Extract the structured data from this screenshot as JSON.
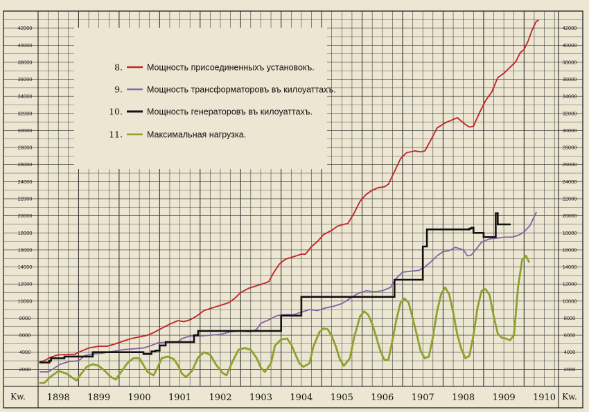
{
  "chart_data": {
    "type": "line",
    "ylim": [
      0,
      44000
    ],
    "y_ticks": [
      2000,
      4000,
      6000,
      8000,
      10000,
      12000,
      14000,
      16000,
      18000,
      20000,
      22000,
      24000,
      26000,
      28000,
      30000,
      32000,
      34000,
      36000,
      38000,
      40000,
      42000
    ],
    "y_unit_left": "Kw.",
    "y_unit_right": "Kw.",
    "x_years": [
      "1898",
      "1899",
      "1900",
      "1901",
      "1902",
      "1903",
      "1904",
      "1905",
      "1906",
      "1907",
      "1908",
      "1909",
      "1910"
    ],
    "xlim": [
      1898,
      1910.85
    ],
    "grid": true,
    "legend_placement": "top-left",
    "series": [
      {
        "id": "s8",
        "num": "8.",
        "name": "Мощность присоединенныхъ установокъ.",
        "color": "#c0282a",
        "step": false,
        "points": [
          [
            1898.05,
            2900
          ],
          [
            1898.15,
            3000
          ],
          [
            1898.3,
            3400
          ],
          [
            1898.5,
            3700
          ],
          [
            1898.75,
            3750
          ],
          [
            1898.9,
            3750
          ],
          [
            1899.05,
            4100
          ],
          [
            1899.25,
            4500
          ],
          [
            1899.5,
            4700
          ],
          [
            1899.7,
            4700
          ],
          [
            1899.85,
            4900
          ],
          [
            1900.1,
            5300
          ],
          [
            1900.3,
            5600
          ],
          [
            1900.5,
            5800
          ],
          [
            1900.7,
            6000
          ],
          [
            1900.85,
            6300
          ],
          [
            1901.05,
            6800
          ],
          [
            1901.25,
            7300
          ],
          [
            1901.45,
            7700
          ],
          [
            1901.6,
            7600
          ],
          [
            1901.75,
            7800
          ],
          [
            1901.9,
            8200
          ],
          [
            1902.1,
            8900
          ],
          [
            1902.3,
            9200
          ],
          [
            1902.5,
            9500
          ],
          [
            1902.7,
            9800
          ],
          [
            1902.85,
            10300
          ],
          [
            1903.0,
            11000
          ],
          [
            1903.2,
            11500
          ],
          [
            1903.4,
            11800
          ],
          [
            1903.6,
            12100
          ],
          [
            1903.7,
            12300
          ],
          [
            1903.8,
            13200
          ],
          [
            1903.95,
            14300
          ],
          [
            1904.1,
            14900
          ],
          [
            1904.3,
            15200
          ],
          [
            1904.5,
            15500
          ],
          [
            1904.6,
            15500
          ],
          [
            1904.75,
            16400
          ],
          [
            1904.9,
            17000
          ],
          [
            1905.05,
            17800
          ],
          [
            1905.25,
            18300
          ],
          [
            1905.4,
            18800
          ],
          [
            1905.55,
            19000
          ],
          [
            1905.65,
            19100
          ],
          [
            1905.8,
            20300
          ],
          [
            1905.95,
            21700
          ],
          [
            1906.1,
            22500
          ],
          [
            1906.25,
            23000
          ],
          [
            1906.4,
            23300
          ],
          [
            1906.55,
            23400
          ],
          [
            1906.65,
            23700
          ],
          [
            1906.8,
            25200
          ],
          [
            1906.95,
            26700
          ],
          [
            1907.1,
            27400
          ],
          [
            1907.3,
            27600
          ],
          [
            1907.45,
            27500
          ],
          [
            1907.55,
            27600
          ],
          [
            1907.7,
            28900
          ],
          [
            1907.85,
            30300
          ],
          [
            1908.05,
            30900
          ],
          [
            1908.2,
            31200
          ],
          [
            1908.35,
            31500
          ],
          [
            1908.45,
            31100
          ],
          [
            1908.55,
            30700
          ],
          [
            1908.65,
            30400
          ],
          [
            1908.75,
            30500
          ],
          [
            1908.9,
            32100
          ],
          [
            1909.05,
            33500
          ],
          [
            1909.2,
            34500
          ],
          [
            1909.35,
            36200
          ],
          [
            1909.5,
            36700
          ],
          [
            1909.65,
            37400
          ],
          [
            1909.8,
            38100
          ],
          [
            1909.9,
            39100
          ],
          [
            1910.0,
            39500
          ],
          [
            1910.1,
            40500
          ],
          [
            1910.2,
            41800
          ],
          [
            1910.3,
            42800
          ],
          [
            1910.35,
            42900
          ]
        ]
      },
      {
        "id": "s9",
        "num": "9.",
        "name": "Мощность трансформаторовъ въ килоуаттахъ.",
        "color": "#8466a8",
        "step": false,
        "points": [
          [
            1898.05,
            1700
          ],
          [
            1898.25,
            1700
          ],
          [
            1898.35,
            2000
          ],
          [
            1898.55,
            2600
          ],
          [
            1898.75,
            2900
          ],
          [
            1899.0,
            3000
          ],
          [
            1899.15,
            3600
          ],
          [
            1899.35,
            3800
          ],
          [
            1899.6,
            3900
          ],
          [
            1899.85,
            4100
          ],
          [
            1900.1,
            4300
          ],
          [
            1900.35,
            4400
          ],
          [
            1900.6,
            4500
          ],
          [
            1900.8,
            4800
          ],
          [
            1900.95,
            5100
          ],
          [
            1901.2,
            5200
          ],
          [
            1901.45,
            5200
          ],
          [
            1901.55,
            5600
          ],
          [
            1901.75,
            5900
          ],
          [
            1902.0,
            5900
          ],
          [
            1902.25,
            6000
          ],
          [
            1902.5,
            6100
          ],
          [
            1902.75,
            6400
          ],
          [
            1903.0,
            6500
          ],
          [
            1903.25,
            6400
          ],
          [
            1903.4,
            6700
          ],
          [
            1903.5,
            7400
          ],
          [
            1903.7,
            7800
          ],
          [
            1903.9,
            8300
          ],
          [
            1904.1,
            8400
          ],
          [
            1904.3,
            8400
          ],
          [
            1904.5,
            8700
          ],
          [
            1904.7,
            9000
          ],
          [
            1904.9,
            8900
          ],
          [
            1905.1,
            9200
          ],
          [
            1905.3,
            9400
          ],
          [
            1905.5,
            9700
          ],
          [
            1905.7,
            10300
          ],
          [
            1905.9,
            10900
          ],
          [
            1906.1,
            11200
          ],
          [
            1906.3,
            11100
          ],
          [
            1906.5,
            11200
          ],
          [
            1906.7,
            11600
          ],
          [
            1906.85,
            12700
          ],
          [
            1907.0,
            13400
          ],
          [
            1907.2,
            13500
          ],
          [
            1907.4,
            13600
          ],
          [
            1907.55,
            14000
          ],
          [
            1907.7,
            14600
          ],
          [
            1907.85,
            15300
          ],
          [
            1908.0,
            15800
          ],
          [
            1908.15,
            15900
          ],
          [
            1908.3,
            16300
          ],
          [
            1908.5,
            16000
          ],
          [
            1908.6,
            15300
          ],
          [
            1908.7,
            15400
          ],
          [
            1908.8,
            16000
          ],
          [
            1908.95,
            16900
          ],
          [
            1909.15,
            17300
          ],
          [
            1909.35,
            17400
          ],
          [
            1909.55,
            17500
          ],
          [
            1909.7,
            17500
          ],
          [
            1909.85,
            17700
          ],
          [
            1910.0,
            18100
          ],
          [
            1910.15,
            18900
          ],
          [
            1910.3,
            20400
          ]
        ]
      },
      {
        "id": "s10",
        "num": "10.",
        "name": "Мощность генераторовъ въ килоуаттахъ.",
        "color": "#111111",
        "step": true,
        "points": [
          [
            1898.05,
            2800
          ],
          [
            1898.28,
            3000
          ],
          [
            1898.32,
            3300
          ],
          [
            1898.65,
            3500
          ],
          [
            1899.3,
            3500
          ],
          [
            1899.35,
            4000
          ],
          [
            1900.6,
            3800
          ],
          [
            1900.8,
            4100
          ],
          [
            1900.9,
            4200
          ],
          [
            1901.0,
            4800
          ],
          [
            1901.15,
            5200
          ],
          [
            1901.55,
            5200
          ],
          [
            1901.85,
            6000
          ],
          [
            1901.95,
            6500
          ],
          [
            1902.8,
            6500
          ],
          [
            1903.4,
            6500
          ],
          [
            1903.85,
            6500
          ],
          [
            1904.0,
            8300
          ],
          [
            1904.45,
            8300
          ],
          [
            1904.5,
            10500
          ],
          [
            1905.55,
            10500
          ],
          [
            1906.0,
            10500
          ],
          [
            1906.45,
            10500
          ],
          [
            1906.8,
            12500
          ],
          [
            1907.2,
            12500
          ],
          [
            1907.4,
            12500
          ],
          [
            1907.5,
            16400
          ],
          [
            1907.6,
            18400
          ],
          [
            1908.55,
            18400
          ],
          [
            1908.65,
            18500
          ],
          [
            1908.7,
            18600
          ],
          [
            1908.75,
            18000
          ],
          [
            1909.0,
            17500
          ],
          [
            1909.25,
            17500
          ],
          [
            1909.3,
            20300
          ],
          [
            1909.35,
            19000
          ],
          [
            1909.65,
            19000
          ]
        ]
      },
      {
        "id": "s11",
        "num": "11.",
        "name": "Максимальная нагрузка.",
        "color": "#8ea12c",
        "step": false,
        "points": [
          [
            1898.05,
            400
          ],
          [
            1898.15,
            400
          ],
          [
            1898.3,
            1100
          ],
          [
            1898.5,
            1800
          ],
          [
            1898.7,
            1500
          ],
          [
            1898.85,
            1000
          ],
          [
            1898.95,
            700
          ],
          [
            1899.05,
            1400
          ],
          [
            1899.2,
            2300
          ],
          [
            1899.35,
            2600
          ],
          [
            1899.5,
            2400
          ],
          [
            1899.65,
            1800
          ],
          [
            1899.8,
            1100
          ],
          [
            1899.92,
            800
          ],
          [
            1900.05,
            1700
          ],
          [
            1900.2,
            2700
          ],
          [
            1900.35,
            3300
          ],
          [
            1900.5,
            3300
          ],
          [
            1900.6,
            2500
          ],
          [
            1900.7,
            1700
          ],
          [
            1900.85,
            1300
          ],
          [
            1900.95,
            2200
          ],
          [
            1901.05,
            3300
          ],
          [
            1901.2,
            3500
          ],
          [
            1901.35,
            3200
          ],
          [
            1901.45,
            2500
          ],
          [
            1901.55,
            1500
          ],
          [
            1901.65,
            1100
          ],
          [
            1901.8,
            1800
          ],
          [
            1901.95,
            3400
          ],
          [
            1902.1,
            4000
          ],
          [
            1902.25,
            3700
          ],
          [
            1902.4,
            2500
          ],
          [
            1902.55,
            1600
          ],
          [
            1902.65,
            1300
          ],
          [
            1902.8,
            2900
          ],
          [
            1902.95,
            4300
          ],
          [
            1903.1,
            4500
          ],
          [
            1903.25,
            4300
          ],
          [
            1903.4,
            3300
          ],
          [
            1903.5,
            2200
          ],
          [
            1903.6,
            1700
          ],
          [
            1903.75,
            2700
          ],
          [
            1903.85,
            4800
          ],
          [
            1904.0,
            5500
          ],
          [
            1904.15,
            5600
          ],
          [
            1904.25,
            4900
          ],
          [
            1904.35,
            3800
          ],
          [
            1904.45,
            2700
          ],
          [
            1904.55,
            2300
          ],
          [
            1904.7,
            2700
          ],
          [
            1904.8,
            4700
          ],
          [
            1904.95,
            6400
          ],
          [
            1905.05,
            6800
          ],
          [
            1905.15,
            6700
          ],
          [
            1905.25,
            5900
          ],
          [
            1905.35,
            4700
          ],
          [
            1905.45,
            3200
          ],
          [
            1905.55,
            2400
          ],
          [
            1905.7,
            3300
          ],
          [
            1905.8,
            5700
          ],
          [
            1905.95,
            8200
          ],
          [
            1906.05,
            8800
          ],
          [
            1906.15,
            8400
          ],
          [
            1906.25,
            7300
          ],
          [
            1906.35,
            5800
          ],
          [
            1906.45,
            4200
          ],
          [
            1906.55,
            3100
          ],
          [
            1906.65,
            3100
          ],
          [
            1906.75,
            5400
          ],
          [
            1906.85,
            7900
          ],
          [
            1906.95,
            9800
          ],
          [
            1907.05,
            10300
          ],
          [
            1907.15,
            9800
          ],
          [
            1907.25,
            8000
          ],
          [
            1907.35,
            6100
          ],
          [
            1907.45,
            4100
          ],
          [
            1907.55,
            3300
          ],
          [
            1907.65,
            3500
          ],
          [
            1907.75,
            5800
          ],
          [
            1907.85,
            8800
          ],
          [
            1907.95,
            10800
          ],
          [
            1908.05,
            11600
          ],
          [
            1908.15,
            10800
          ],
          [
            1908.25,
            8700
          ],
          [
            1908.35,
            6100
          ],
          [
            1908.45,
            4400
          ],
          [
            1908.55,
            3300
          ],
          [
            1908.65,
            3600
          ],
          [
            1908.75,
            6000
          ],
          [
            1908.85,
            9200
          ],
          [
            1908.95,
            11200
          ],
          [
            1909.05,
            11400
          ],
          [
            1909.15,
            10700
          ],
          [
            1909.25,
            8200
          ],
          [
            1909.35,
            6200
          ],
          [
            1909.45,
            5700
          ],
          [
            1909.55,
            5600
          ],
          [
            1909.65,
            5400
          ],
          [
            1909.75,
            6000
          ],
          [
            1909.85,
            11600
          ],
          [
            1909.95,
            14800
          ],
          [
            1910.05,
            15300
          ],
          [
            1910.12,
            14600
          ]
        ]
      }
    ]
  }
}
